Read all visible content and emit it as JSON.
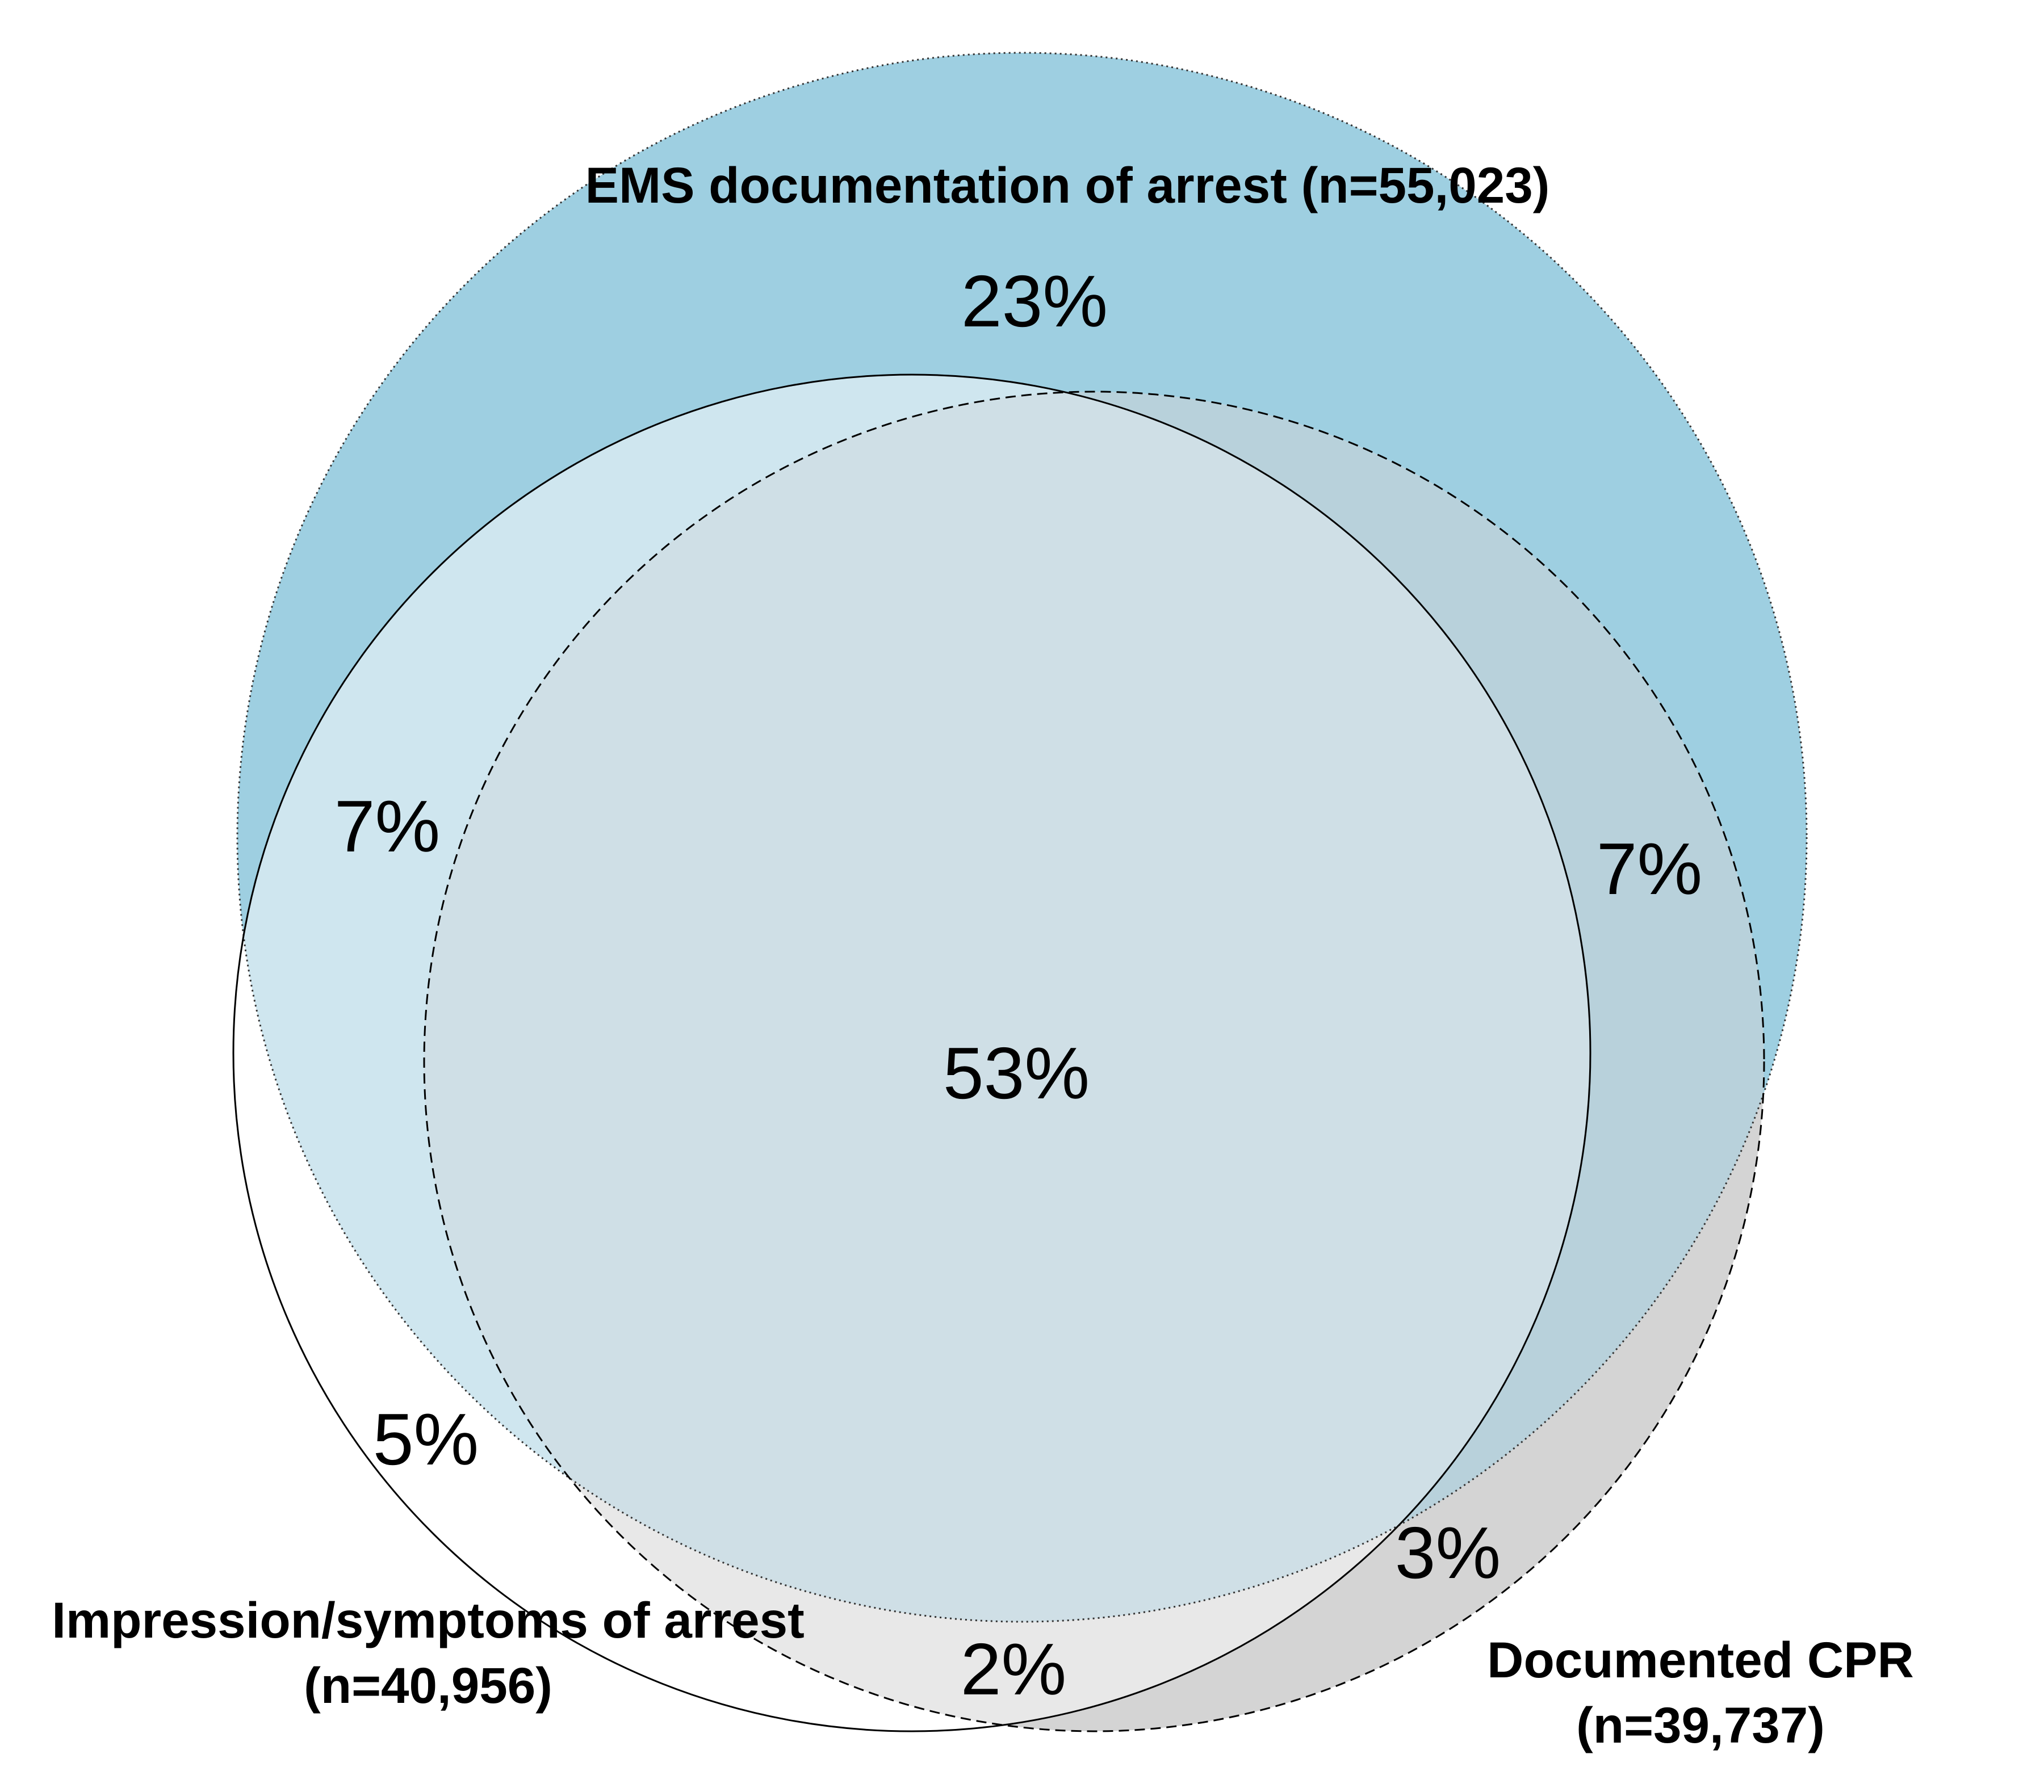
{
  "sets": {
    "ems": {
      "label": "EMS documentation of arrest (n=55,023)",
      "color": "#9ecfe1"
    },
    "impression": {
      "label_line1": "Impression/symptoms of arrest",
      "label_line2": "(n=40,956)",
      "color": "#ffffff"
    },
    "cpr": {
      "label_line1": "Documented CPR",
      "label_line2": "(n=39,737)",
      "color": "#d4d4d4"
    }
  },
  "regions": {
    "ems_only": "23%",
    "ems_impression": "7%",
    "ems_cpr": "7%",
    "all_three": "53%",
    "impression_only": "5%",
    "impression_cpr": "2%",
    "cpr_only": "3%"
  },
  "region_colors": {
    "ems_only": "#9ecfe1",
    "ems_impression": "#cfe6ef",
    "ems_cpr": "#b8d1db",
    "all_three": "#cfdfe6",
    "impression_only": "#ffffff",
    "impression_cpr": "#e8e8e8",
    "cpr_only": "#d4d4d4"
  }
}
